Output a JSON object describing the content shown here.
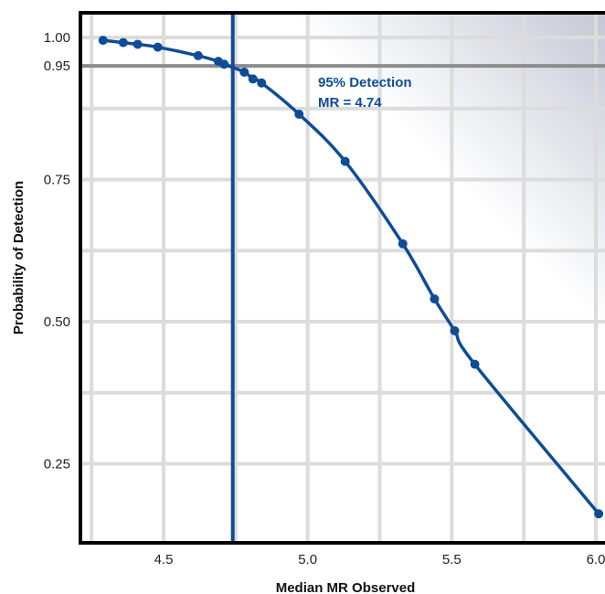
{
  "chart_data": {
    "type": "line",
    "title": "",
    "xlabel": "Median MR Observed",
    "ylabel": "Probability of Detection",
    "xlim": [
      3.98,
      6.0
    ],
    "ylim": [
      0.125,
      1.04
    ],
    "x_ticks": [
      {
        "value": 4.5,
        "label": "4.5"
      },
      {
        "value": 5.0,
        "label": "5.0"
      },
      {
        "value": 5.5,
        "label": "5.5"
      },
      {
        "value": 6.0,
        "label": "6.0"
      }
    ],
    "y_ticks": [
      {
        "value": 1.0,
        "label": "1.00"
      },
      {
        "value": 0.95,
        "label": "0.95"
      },
      {
        "value": 0.75,
        "label": "0.75"
      },
      {
        "value": 0.5,
        "label": "0.50"
      },
      {
        "value": 0.25,
        "label": "0.25"
      }
    ],
    "x_grid": [
      4.25,
      4.5,
      4.75,
      5.0,
      5.25,
      5.5,
      5.75,
      6.0
    ],
    "y_grid": [
      0.25,
      0.375,
      0.5,
      0.625,
      0.75,
      0.875,
      1.0
    ],
    "grid": true,
    "series": [
      {
        "color": "#0f4c97",
        "points": [
          {
            "x": 4.29,
            "y": 0.995
          },
          {
            "x": 4.36,
            "y": 0.991
          },
          {
            "x": 4.41,
            "y": 0.988
          },
          {
            "x": 4.48,
            "y": 0.983
          },
          {
            "x": 4.62,
            "y": 0.968
          },
          {
            "x": 4.69,
            "y": 0.958
          },
          {
            "x": 4.71,
            "y": 0.953
          },
          {
            "x": 4.78,
            "y": 0.939
          },
          {
            "x": 4.81,
            "y": 0.927
          },
          {
            "x": 4.84,
            "y": 0.92
          },
          {
            "x": 4.97,
            "y": 0.865
          },
          {
            "x": 5.13,
            "y": 0.782
          },
          {
            "x": 5.33,
            "y": 0.637
          },
          {
            "x": 5.44,
            "y": 0.54
          },
          {
            "x": 5.51,
            "y": 0.484
          },
          {
            "x": 5.58,
            "y": 0.425
          },
          {
            "x": 6.01,
            "y": 0.162
          }
        ]
      }
    ],
    "reference_lines": {
      "horizontal": {
        "y": 0.95,
        "color": "#8c8c8c"
      },
      "vertical": {
        "x": 4.74,
        "color": "#0f4c97"
      }
    },
    "annotation": {
      "lines": [
        "95% Detection",
        "MR = 4.74"
      ],
      "color": "#0f4c97"
    },
    "colors": {
      "grid": "#dcdcdc",
      "frame": "#000000",
      "background_gradient_from": "#ffffff",
      "background_gradient_to": "#c4c8d4"
    }
  }
}
